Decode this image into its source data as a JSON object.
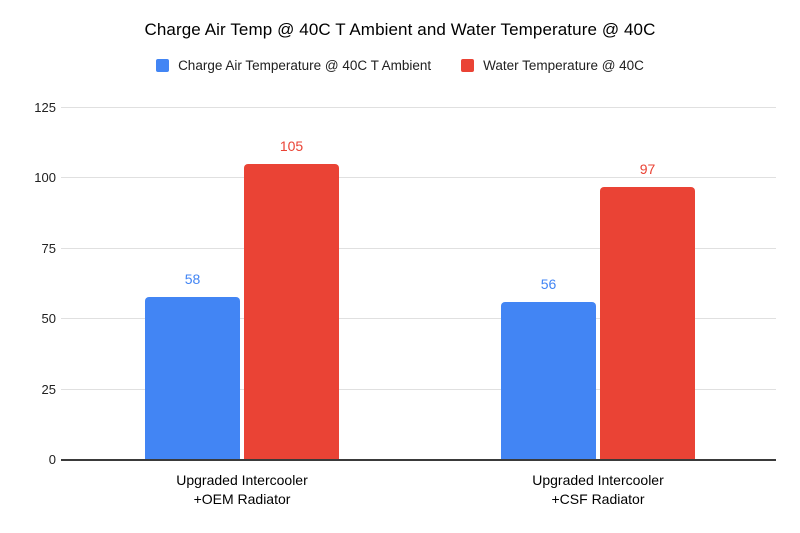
{
  "chart_data": {
    "type": "bar",
    "title": "Charge Air Temp @ 40C T Ambient and Water Temperature @ 40C",
    "categories": [
      "Upgraded Intercooler\n+OEM Radiator",
      "Upgraded Intercooler\n+CSF Radiator"
    ],
    "series": [
      {
        "name": "Charge Air Temperature @ 40C T Ambient",
        "color": "#4285f4",
        "values": [
          58,
          56
        ]
      },
      {
        "name": "Water Temperature @ 40C",
        "color": "#ea4335",
        "values": [
          105,
          97
        ]
      }
    ],
    "ylim": [
      0,
      125
    ],
    "yticks": [
      0,
      25,
      50,
      75,
      100,
      125
    ],
    "grid": true,
    "legend_position": "top",
    "value_labels": true
  },
  "style": {
    "background": "#ffffff",
    "grid_color": "#e0e0e0",
    "axis_color": "#3a3a3a",
    "title_color": "#000000",
    "tick_label_color": "#212121"
  }
}
